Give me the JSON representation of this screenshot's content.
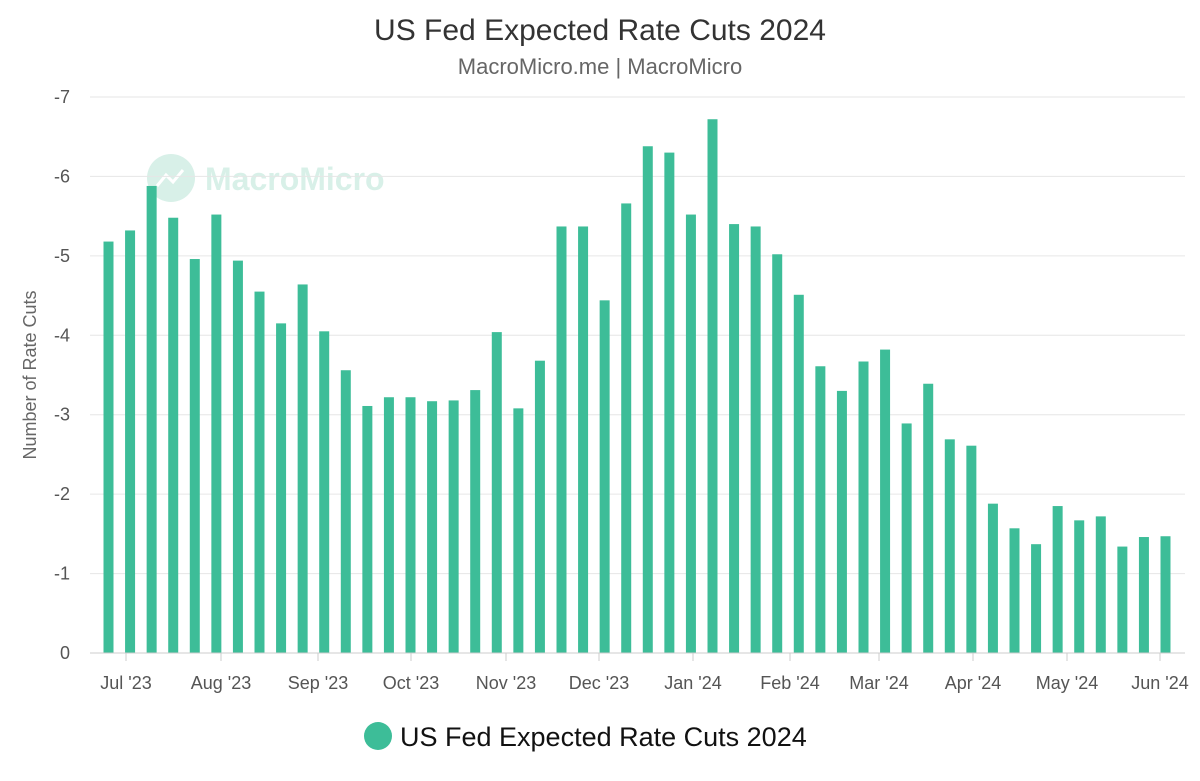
{
  "chart_data": {
    "type": "bar",
    "title": "US Fed Expected Rate Cuts 2024",
    "subtitle": "MacroMicro.me | MacroMicro",
    "ylabel": "Number of Rate Cuts",
    "xlabel": "",
    "ylim": [
      0,
      -7
    ],
    "yticks": [
      "-7",
      "-6",
      "-5",
      "-4",
      "-3",
      "-2",
      "-1",
      "0"
    ],
    "xtick_labels": [
      "Jul '23",
      "Aug '23",
      "Sep '23",
      "Oct '23",
      "Nov '23",
      "Dec '23",
      "Jan '24",
      "Feb '24",
      "Mar '24",
      "Apr '24",
      "May '24",
      "Jun '24"
    ],
    "grid": true,
    "legend_position": "bottom",
    "color": "#3dbd98",
    "series": [
      {
        "name": "US Fed Expected Rate Cuts 2024",
        "values": [
          -5.18,
          -5.32,
          -5.88,
          -5.48,
          -4.96,
          -5.52,
          -4.94,
          -4.55,
          -4.15,
          -4.64,
          -4.05,
          -3.56,
          -3.11,
          -3.22,
          -3.22,
          -3.17,
          -3.18,
          -3.31,
          -4.04,
          -3.08,
          -3.68,
          -5.37,
          -5.37,
          -4.44,
          -5.66,
          -6.38,
          -6.3,
          -5.52,
          -6.72,
          -5.4,
          -5.37,
          -5.02,
          -4.51,
          -3.61,
          -3.3,
          -3.67,
          -3.82,
          -2.89,
          -3.39,
          -2.69,
          -2.61,
          -1.88,
          -1.57,
          -1.37,
          -1.85,
          -1.67,
          -1.72,
          -1.34,
          -1.46,
          -1.47
        ]
      }
    ],
    "watermark": "MacroMicro"
  }
}
